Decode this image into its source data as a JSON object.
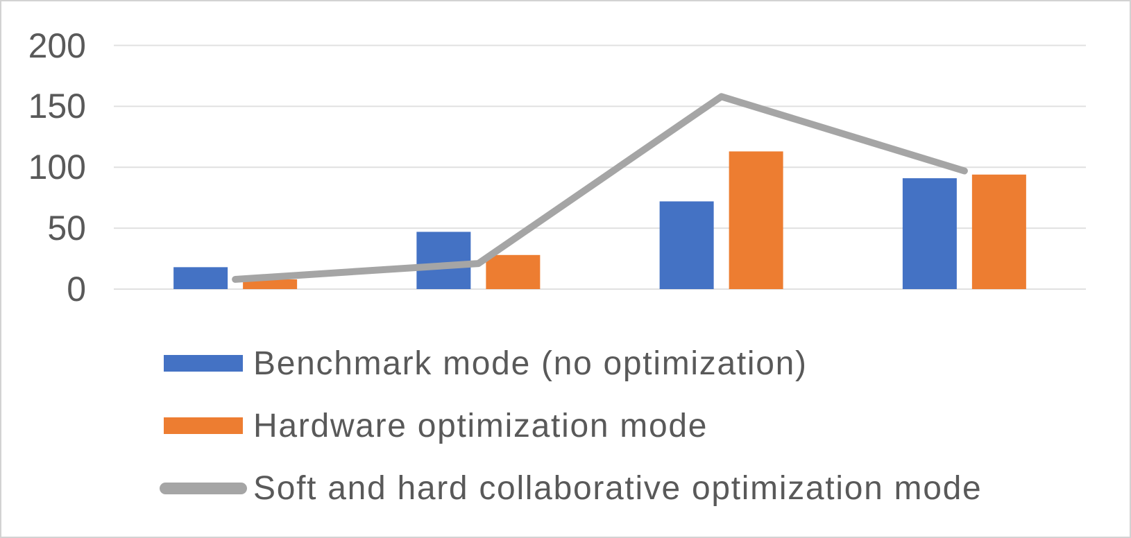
{
  "chart_data": {
    "type": "combo",
    "series": [
      {
        "name": "Benchmark mode (no optimization)",
        "type": "bar",
        "color": "#4472C4",
        "values": [
          18,
          47,
          72,
          91
        ]
      },
      {
        "name": "Hardware optimization mode",
        "type": "bar",
        "color": "#ED7D31",
        "values": [
          8,
          28,
          113,
          94
        ]
      },
      {
        "name": "Soft and hard collaborative optimization mode",
        "type": "line",
        "color": "#A5A5A5",
        "values": [
          8,
          21,
          158,
          97
        ]
      }
    ],
    "y_axis": {
      "min": 0,
      "max": 200,
      "ticks": [
        0,
        50,
        100,
        150,
        200
      ]
    },
    "x_axis": {
      "categories": 4,
      "labels_visible": false
    },
    "grid": true,
    "legend_position": "bottom-left",
    "grid_color": "#e0e0e0",
    "text_color": "#595959"
  }
}
